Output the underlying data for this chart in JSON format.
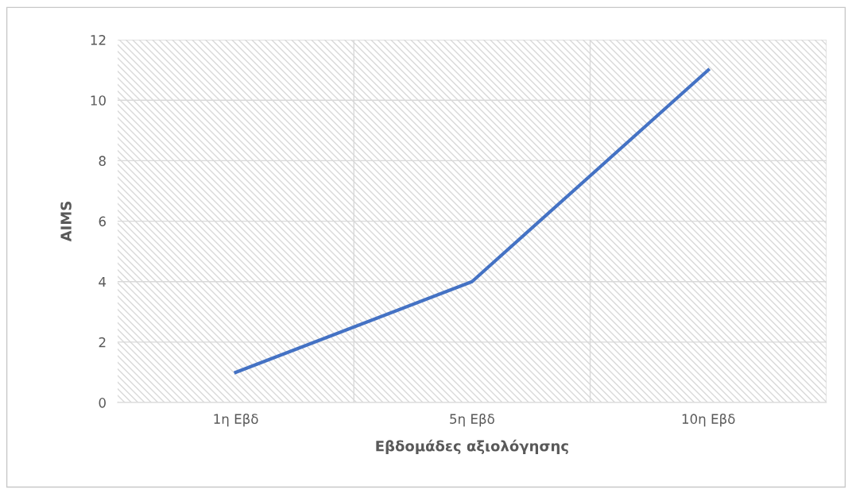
{
  "chart_data": {
    "type": "line",
    "xlabel": "Εβδομάδες αξιολόγησης",
    "ylabel": "AIMS",
    "categories": [
      "1η Εβδ",
      "5η Εβδ",
      "10η Εβδ"
    ],
    "series": [
      {
        "color": "#4472c4",
        "values": [
          1,
          4,
          11
        ]
      }
    ],
    "ylim": [
      0,
      12
    ],
    "yticks": [
      0,
      2,
      4,
      6,
      8,
      10,
      12
    ],
    "grid": true,
    "marker": "none",
    "line_style": "solid"
  }
}
